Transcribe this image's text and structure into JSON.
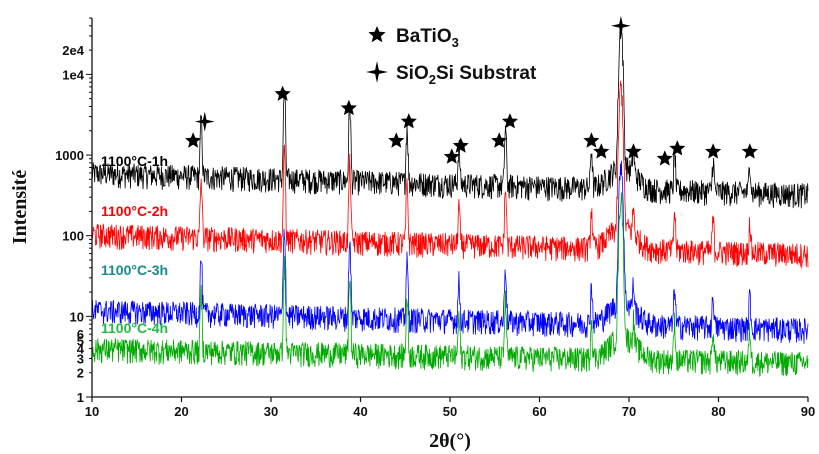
{
  "chart_data": {
    "type": "line",
    "title": "",
    "xlabel": "2θ(°)",
    "ylabel": "Intensité",
    "xlim": [
      10,
      90
    ],
    "ylog": true,
    "ylim": [
      1,
      50000
    ],
    "x_ticks": [
      10,
      20,
      30,
      40,
      50,
      60,
      70,
      80,
      90
    ],
    "y_ticks": [
      {
        "value": 1,
        "label": "1"
      },
      {
        "value": 2,
        "label": "2"
      },
      {
        "value": 3,
        "label": "3"
      },
      {
        "value": 4,
        "label": "4"
      },
      {
        "value": 5,
        "label": "5"
      },
      {
        "value": 6,
        "label": "6"
      },
      {
        "value": 10,
        "label": "10"
      },
      {
        "value": 100,
        "label": "100"
      },
      {
        "value": 1000,
        "label": "1000"
      },
      {
        "value": 10000,
        "label": "1e4"
      },
      {
        "value": 20000,
        "label": "2e4"
      }
    ],
    "grid": false,
    "legend": {
      "placement": "top-center",
      "entries": [
        {
          "symbol": "five-point-star",
          "label_main": "BaTiO",
          "label_sub": "3",
          "label_tail": ""
        },
        {
          "symbol": "four-point-star",
          "label_main": "SiO",
          "label_sub": "2",
          "label_tail": "Si Substrat"
        }
      ]
    },
    "series": [
      {
        "name": "1100°C-1h",
        "color": "#000000",
        "baseline": 600,
        "end_level": 330
      },
      {
        "name": "1100°C-2h",
        "color": "#ff0000",
        "baseline": 105,
        "end_level": 60
      },
      {
        "name": "1100°C-3h",
        "color": "#0000ff",
        "baseline": 12,
        "end_level": 7
      },
      {
        "name": "1100°C-4h",
        "color": "#00aa00",
        "baseline": 4,
        "end_level": 2.7
      }
    ],
    "peaks": [
      {
        "x": 22.2,
        "rel": 5
      },
      {
        "x": 31.5,
        "rel": 12
      },
      {
        "x": 38.8,
        "rel": 9
      },
      {
        "x": 45.2,
        "rel": 5
      },
      {
        "x": 51.0,
        "rel": 3
      },
      {
        "x": 56.2,
        "rel": 5
      },
      {
        "x": 65.8,
        "rel": 3
      },
      {
        "x": 69.1,
        "rel": 55
      },
      {
        "x": 70.5,
        "rel": 2
      },
      {
        "x": 75.1,
        "rel": 3
      },
      {
        "x": 79.4,
        "rel": 2.5
      },
      {
        "x": 83.5,
        "rel": 2.5
      }
    ],
    "annotations": [
      {
        "x": 21.3,
        "y": 1500,
        "symbol": "five-point-star"
      },
      {
        "x": 22.6,
        "y": 2600,
        "symbol": "four-point-star"
      },
      {
        "x": 31.3,
        "y": 5700,
        "symbol": "five-point-star"
      },
      {
        "x": 38.7,
        "y": 3800,
        "symbol": "five-point-star"
      },
      {
        "x": 44.0,
        "y": 1500,
        "symbol": "five-point-star"
      },
      {
        "x": 45.4,
        "y": 2600,
        "symbol": "five-point-star"
      },
      {
        "x": 50.2,
        "y": 950,
        "symbol": "five-point-star"
      },
      {
        "x": 51.2,
        "y": 1300,
        "symbol": "five-point-star"
      },
      {
        "x": 55.5,
        "y": 1500,
        "symbol": "five-point-star"
      },
      {
        "x": 56.7,
        "y": 2600,
        "symbol": "five-point-star"
      },
      {
        "x": 65.8,
        "y": 1500,
        "symbol": "five-point-star"
      },
      {
        "x": 66.9,
        "y": 1100,
        "symbol": "five-point-star"
      },
      {
        "x": 69.1,
        "y": 40000,
        "symbol": "four-point-star"
      },
      {
        "x": 70.5,
        "y": 1100,
        "symbol": "five-point-star"
      },
      {
        "x": 74.0,
        "y": 900,
        "symbol": "five-point-star"
      },
      {
        "x": 75.4,
        "y": 1200,
        "symbol": "five-point-star"
      },
      {
        "x": 79.4,
        "y": 1100,
        "symbol": "five-point-star"
      },
      {
        "x": 83.5,
        "y": 1100,
        "symbol": "five-point-star"
      }
    ]
  }
}
